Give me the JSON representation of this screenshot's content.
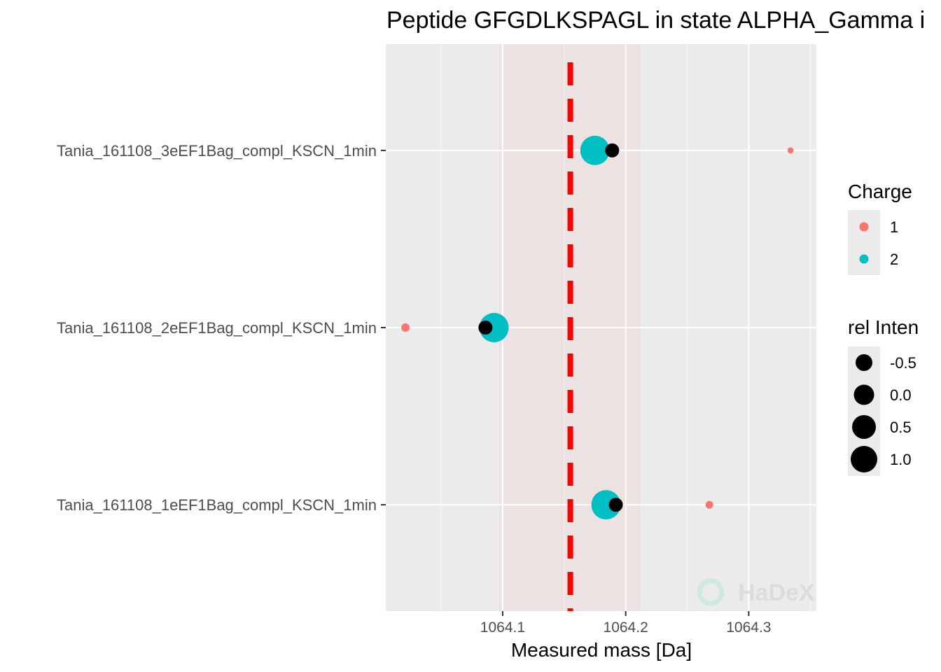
{
  "chart_data": {
    "type": "scatter",
    "title": "Peptide GFGDLKSPAGL in state ALPHA_Gamma i",
    "xlabel": "Measured mass [Da]",
    "ylabel": "",
    "xlim": [
      1064.005,
      1064.355
    ],
    "x_ticks": [
      "1064.1",
      "1064.2",
      "1064.3"
    ],
    "x_tick_values": [
      1064.1,
      1064.2,
      1064.3
    ],
    "categories": [
      "Tania_161108_3eEF1Bag_compl_KSCN_1min",
      "Tania_161108_2eEF1Bag_compl_KSCN_1min",
      "Tania_161108_1eEF1Bag_compl_KSCN_1min"
    ],
    "reference_line": {
      "x": 1064.155,
      "color": "#ff0000",
      "style": "dashed"
    },
    "reference_band": {
      "x_min": 1064.097,
      "x_max": 1064.212,
      "color": "#f5c6c6"
    },
    "grid": true,
    "series": [
      {
        "name": "1",
        "color": "#f8766d",
        "points": [
          {
            "category": "Tania_161108_3eEF1Bag_compl_KSCN_1min",
            "x": 1064.334,
            "rel_intensity": -0.9
          },
          {
            "category": "Tania_161108_2eEF1Bag_compl_KSCN_1min",
            "x": 1064.021,
            "rel_intensity": -0.6
          },
          {
            "category": "Tania_161108_1eEF1Bag_compl_KSCN_1min",
            "x": 1064.268,
            "rel_intensity": -0.7
          }
        ]
      },
      {
        "name": "2",
        "color": "#00bfc4",
        "points": [
          {
            "category": "Tania_161108_3eEF1Bag_compl_KSCN_1min",
            "x": 1064.175,
            "rel_intensity": 1.0
          },
          {
            "category": "Tania_161108_2eEF1Bag_compl_KSCN_1min",
            "x": 1064.093,
            "rel_intensity": 1.0
          },
          {
            "category": "Tania_161108_1eEF1Bag_compl_KSCN_1min",
            "x": 1064.184,
            "rel_intensity": 1.0
          }
        ]
      }
    ],
    "average_points": {
      "color": "#000000",
      "points": [
        {
          "category": "Tania_161108_3eEF1Bag_compl_KSCN_1min",
          "x": 1064.189
        },
        {
          "category": "Tania_161108_2eEF1Bag_compl_KSCN_1min",
          "x": 1064.086
        },
        {
          "category": "Tania_161108_1eEF1Bag_compl_KSCN_1min",
          "x": 1064.192
        }
      ]
    },
    "legend": {
      "placement": "right",
      "charge": {
        "title": "Charge",
        "entries": [
          "1",
          "2"
        ]
      },
      "intensity": {
        "title": "rel Inten",
        "entries": [
          "-0.5",
          "0.0",
          "0.5",
          "1.0"
        ],
        "values": [
          -0.5,
          0.0,
          0.5,
          1.0
        ]
      }
    },
    "watermark": "HaDeX"
  }
}
